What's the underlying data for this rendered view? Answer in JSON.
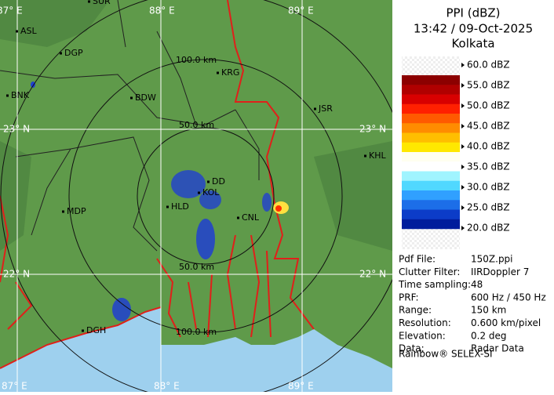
{
  "map": {
    "lon_labels_top": [
      "87° E",
      "88° E",
      "89° E"
    ],
    "lon_labels_bottom": [
      "87° E",
      "88° E",
      "89° E"
    ],
    "lat_labels_left": [
      "23° N",
      "22° N"
    ],
    "lat_labels_right": [
      "23° N",
      "22° N"
    ],
    "range_labels": [
      "100.0 km",
      "50.0 km",
      "50.0 km",
      "100.0 km"
    ],
    "cities": [
      "SUR",
      "ASL",
      "DGP",
      "BNK",
      "BDW",
      "KRG",
      "JSR",
      "KHL",
      "DD",
      "KOL",
      "HLD",
      "CNL",
      "MDP",
      "DGH"
    ]
  },
  "panel": {
    "title": "PPI (dBZ)",
    "time": "13:42 / 09-Oct-2025",
    "station": "Kolkata",
    "legend": [
      "60.0 dBZ",
      "55.0 dBZ",
      "50.0 dBZ",
      "45.0 dBZ",
      "40.0 dBZ",
      "35.0 dBZ",
      "30.0 dBZ",
      "25.0 dBZ",
      "20.0 dBZ"
    ],
    "info": [
      [
        "Pdf File:",
        "150Z.ppi"
      ],
      [
        "Clutter Filter:",
        "IIRDoppler 7"
      ],
      [
        "Time sampling:",
        "48"
      ],
      [
        "PRF:",
        "600 Hz / 450 Hz"
      ],
      [
        "Range:",
        "150 km"
      ],
      [
        "Resolution:",
        "0.600 km/pixel"
      ],
      [
        "Elevation:",
        "0.2 deg"
      ],
      [
        "Data:",
        "Radar Data"
      ]
    ],
    "footer": "Rainbow® SELEX-SI"
  }
}
